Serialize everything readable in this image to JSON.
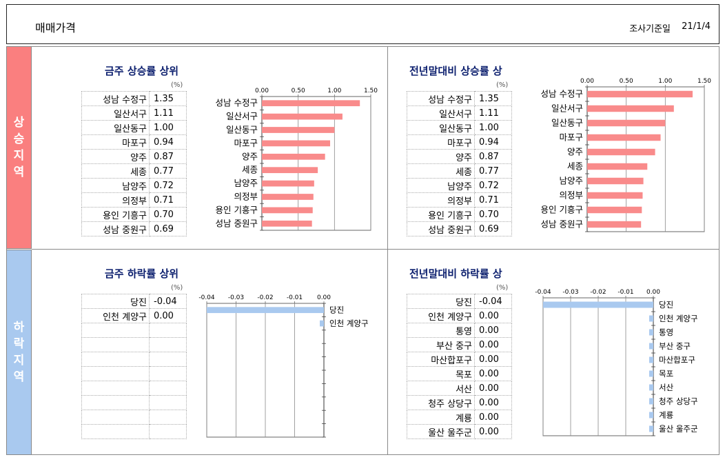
{
  "header": {
    "title": "매매가격",
    "date_label": "조사기준일",
    "date": "21/1/4"
  },
  "side_labels": {
    "rise": [
      "상",
      "승",
      "지",
      "역"
    ],
    "fall": [
      "하",
      "락",
      "지",
      "역"
    ]
  },
  "panels": {
    "week_up_title": "금주 상승률 상위",
    "year_up_title": "전년말대비 상승률 상",
    "week_down_title": "금주 하락률 상위",
    "year_down_title": "전년말대비 하락률 상",
    "unit": "(%)"
  },
  "chart_data": [
    {
      "id": "week_up",
      "type": "bar",
      "orientation": "horizontal",
      "title": "금주 상승률 상위",
      "color": "#f98b8b",
      "categories": [
        "성남 수정구",
        "일산서구",
        "일산동구",
        "마포구",
        "양주",
        "세종",
        "남양주",
        "의정부",
        "용인 기흥구",
        "성남 중원구"
      ],
      "values": [
        "1.35",
        "1.11",
        "1.00",
        "0.94",
        "0.87",
        "0.77",
        "0.72",
        "0.71",
        "0.70",
        "0.69"
      ],
      "xlim": [
        0,
        1.5
      ],
      "ticks": [
        "0.00",
        "0.50",
        "1.00",
        "1.50"
      ]
    },
    {
      "id": "year_up",
      "type": "bar",
      "orientation": "horizontal",
      "title": "전년말대비 상승률 상",
      "color": "#f98b8b",
      "categories": [
        "성남 수정구",
        "일산서구",
        "일산동구",
        "마포구",
        "양주",
        "세종",
        "남양주",
        "의정부",
        "용인 기흥구",
        "성남 중원구"
      ],
      "values": [
        "1.35",
        "1.11",
        "1.00",
        "0.94",
        "0.87",
        "0.77",
        "0.72",
        "0.71",
        "0.70",
        "0.69"
      ],
      "xlim": [
        0,
        1.5
      ],
      "ticks": [
        "0.00",
        "0.50",
        "1.00",
        "1.50"
      ]
    },
    {
      "id": "week_down",
      "type": "bar",
      "orientation": "horizontal",
      "title": "금주 하락률 상위",
      "color": "#a9c9ef",
      "categories": [
        "당진",
        "인천 계양구"
      ],
      "values": [
        "-0.04",
        "0.00"
      ],
      "xlim": [
        -0.04,
        0
      ],
      "ticks": [
        "-0.04",
        "-0.03",
        "-0.02",
        "-0.01",
        "0.00"
      ]
    },
    {
      "id": "year_down",
      "type": "bar",
      "orientation": "horizontal",
      "title": "전년말대비 하락률 상",
      "color": "#a9c9ef",
      "categories": [
        "당진",
        "인천 계양구",
        "통영",
        "부산 중구",
        "마산합포구",
        "목포",
        "서산",
        "청주 상당구",
        "계룡",
        "울산 울주군"
      ],
      "values": [
        "-0.04",
        "0.00",
        "0.00",
        "0.00",
        "0.00",
        "0.00",
        "0.00",
        "0.00",
        "0.00",
        "0.00"
      ],
      "xlim": [
        -0.04,
        0
      ],
      "ticks": [
        "-0.04",
        "-0.03",
        "-0.02",
        "-0.01",
        "0.00"
      ]
    }
  ]
}
